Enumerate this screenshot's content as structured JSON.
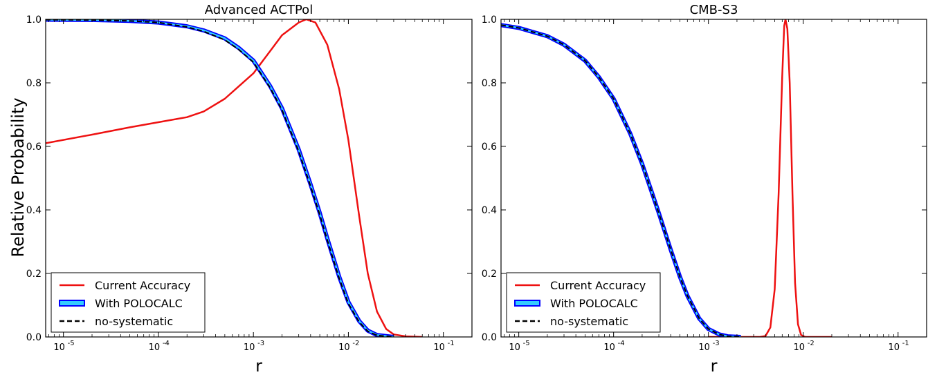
{
  "figure": {
    "ylabel": "Relative Probability"
  },
  "chart_data": [
    {
      "type": "line",
      "title": "Advanced ACTPol",
      "xlabel": "r",
      "xscale": "log",
      "xlim": [
        6.5e-06,
        0.2
      ],
      "ylim": [
        0,
        1.0
      ],
      "x_ticks": [
        1e-05,
        0.0001,
        0.001,
        0.01,
        0.1
      ],
      "x_tick_labels": [
        {
          "base": "10",
          "exp": "-5"
        },
        {
          "base": "10",
          "exp": "-4"
        },
        {
          "base": "10",
          "exp": "-3"
        },
        {
          "base": "10",
          "exp": "-2"
        },
        {
          "base": "10",
          "exp": "-1"
        }
      ],
      "y_ticks": [
        0.0,
        0.2,
        0.4,
        0.6,
        0.8,
        1.0
      ],
      "y_tick_labels": [
        "0.0",
        "0.2",
        "0.4",
        "0.6",
        "0.8",
        "1.0"
      ],
      "legend_position": "lower-left",
      "series": [
        {
          "name": "Current Accuracy",
          "style": "solid-red",
          "color": "#ee1111",
          "points": [
            [
              6.5e-06,
              0.61
            ],
            [
              2e-05,
              0.637
            ],
            [
              5e-05,
              0.66
            ],
            [
              0.0001,
              0.676
            ],
            [
              0.0002,
              0.692
            ],
            [
              0.0003,
              0.71
            ],
            [
              0.0005,
              0.75
            ],
            [
              0.001,
              0.83
            ],
            [
              0.0015,
              0.9
            ],
            [
              0.002,
              0.95
            ],
            [
              0.003,
              0.99
            ],
            [
              0.0036,
              1.0
            ],
            [
              0.0045,
              0.99
            ],
            [
              0.006,
              0.92
            ],
            [
              0.008,
              0.78
            ],
            [
              0.01,
              0.62
            ],
            [
              0.013,
              0.38
            ],
            [
              0.016,
              0.2
            ],
            [
              0.02,
              0.08
            ],
            [
              0.025,
              0.025
            ],
            [
              0.03,
              0.008
            ],
            [
              0.04,
              0.002
            ],
            [
              0.06,
              0.0
            ]
          ]
        },
        {
          "name": "With POLOCALC",
          "style": "band-blue",
          "color": "#0000ff",
          "fill_color": "#33ccff",
          "points": [
            [
              6.5e-06,
              0.999
            ],
            [
              2e-05,
              0.998
            ],
            [
              5e-05,
              0.995
            ],
            [
              0.0001,
              0.99
            ],
            [
              0.0002,
              0.978
            ],
            [
              0.0003,
              0.965
            ],
            [
              0.0005,
              0.94
            ],
            [
              0.0007,
              0.91
            ],
            [
              0.001,
              0.87
            ],
            [
              0.0015,
              0.79
            ],
            [
              0.002,
              0.72
            ],
            [
              0.003,
              0.59
            ],
            [
              0.004,
              0.48
            ],
            [
              0.005,
              0.39
            ],
            [
              0.006,
              0.31
            ],
            [
              0.008,
              0.19
            ],
            [
              0.01,
              0.11
            ],
            [
              0.013,
              0.05
            ],
            [
              0.016,
              0.02
            ],
            [
              0.02,
              0.006
            ],
            [
              0.03,
              0.0
            ]
          ]
        },
        {
          "name": "no-systematic",
          "style": "dashed-black",
          "color": "#000000",
          "points": [
            [
              6.5e-06,
              0.999
            ],
            [
              2e-05,
              0.998
            ],
            [
              5e-05,
              0.995
            ],
            [
              0.0001,
              0.99
            ],
            [
              0.0002,
              0.976
            ],
            [
              0.0003,
              0.962
            ],
            [
              0.0005,
              0.935
            ],
            [
              0.0007,
              0.905
            ],
            [
              0.001,
              0.865
            ],
            [
              0.0015,
              0.785
            ],
            [
              0.002,
              0.715
            ],
            [
              0.003,
              0.585
            ],
            [
              0.004,
              0.475
            ],
            [
              0.005,
              0.385
            ],
            [
              0.006,
              0.305
            ],
            [
              0.008,
              0.185
            ],
            [
              0.01,
              0.105
            ],
            [
              0.013,
              0.047
            ],
            [
              0.016,
              0.018
            ],
            [
              0.02,
              0.005
            ],
            [
              0.03,
              0.0
            ]
          ]
        }
      ]
    },
    {
      "type": "line",
      "title": "CMB-S3",
      "xlabel": "r",
      "xscale": "log",
      "xlim": [
        6.5e-06,
        0.2
      ],
      "ylim": [
        0,
        1.0
      ],
      "x_ticks": [
        1e-05,
        0.0001,
        0.001,
        0.01,
        0.1
      ],
      "x_tick_labels": [
        {
          "base": "10",
          "exp": "-5"
        },
        {
          "base": "10",
          "exp": "-4"
        },
        {
          "base": "10",
          "exp": "-3"
        },
        {
          "base": "10",
          "exp": "-2"
        },
        {
          "base": "10",
          "exp": "-1"
        }
      ],
      "y_ticks": [
        0.0,
        0.2,
        0.4,
        0.6,
        0.8,
        1.0
      ],
      "y_tick_labels": [
        "0.0",
        "0.2",
        "0.4",
        "0.6",
        "0.8",
        "1.0"
      ],
      "legend_position": "lower-left",
      "series": [
        {
          "name": "Current Accuracy",
          "style": "solid-red",
          "color": "#ee1111",
          "points": [
            [
              0.001,
              0.0
            ],
            [
              0.0035,
              0.0
            ],
            [
              0.004,
              0.003
            ],
            [
              0.0045,
              0.03
            ],
            [
              0.005,
              0.15
            ],
            [
              0.0055,
              0.45
            ],
            [
              0.006,
              0.82
            ],
            [
              0.0063,
              0.98
            ],
            [
              0.0065,
              1.0
            ],
            [
              0.0068,
              0.97
            ],
            [
              0.0072,
              0.8
            ],
            [
              0.0077,
              0.45
            ],
            [
              0.0082,
              0.17
            ],
            [
              0.0088,
              0.04
            ],
            [
              0.0095,
              0.006
            ],
            [
              0.0105,
              0.0
            ],
            [
              0.02,
              0.0
            ]
          ]
        },
        {
          "name": "With POLOCALC",
          "style": "band-blue",
          "color": "#0000ff",
          "fill_color": "#33ccff",
          "points": [
            [
              6.5e-06,
              0.982
            ],
            [
              1e-05,
              0.973
            ],
            [
              2e-05,
              0.947
            ],
            [
              3e-05,
              0.92
            ],
            [
              5e-05,
              0.87
            ],
            [
              7e-05,
              0.818
            ],
            [
              0.0001,
              0.75
            ],
            [
              0.00015,
              0.64
            ],
            [
              0.0002,
              0.545
            ],
            [
              0.00025,
              0.46
            ],
            [
              0.0003,
              0.39
            ],
            [
              0.0004,
              0.275
            ],
            [
              0.0005,
              0.19
            ],
            [
              0.0006,
              0.13
            ],
            [
              0.0008,
              0.058
            ],
            [
              0.001,
              0.025
            ],
            [
              0.0013,
              0.008
            ],
            [
              0.0016,
              0.002
            ],
            [
              0.0022,
              0.0
            ]
          ]
        },
        {
          "name": "no-systematic",
          "style": "dashed-black",
          "color": "#000000",
          "points": [
            [
              6.5e-06,
              0.982
            ],
            [
              1e-05,
              0.973
            ],
            [
              2e-05,
              0.947
            ],
            [
              3e-05,
              0.92
            ],
            [
              5e-05,
              0.87
            ],
            [
              7e-05,
              0.818
            ],
            [
              0.0001,
              0.75
            ],
            [
              0.00015,
              0.64
            ],
            [
              0.0002,
              0.545
            ],
            [
              0.00025,
              0.46
            ],
            [
              0.0003,
              0.39
            ],
            [
              0.0004,
              0.275
            ],
            [
              0.0005,
              0.19
            ],
            [
              0.0006,
              0.13
            ],
            [
              0.0008,
              0.058
            ],
            [
              0.001,
              0.025
            ],
            [
              0.0013,
              0.008
            ],
            [
              0.0016,
              0.002
            ],
            [
              0.0022,
              0.0
            ]
          ]
        }
      ]
    }
  ]
}
